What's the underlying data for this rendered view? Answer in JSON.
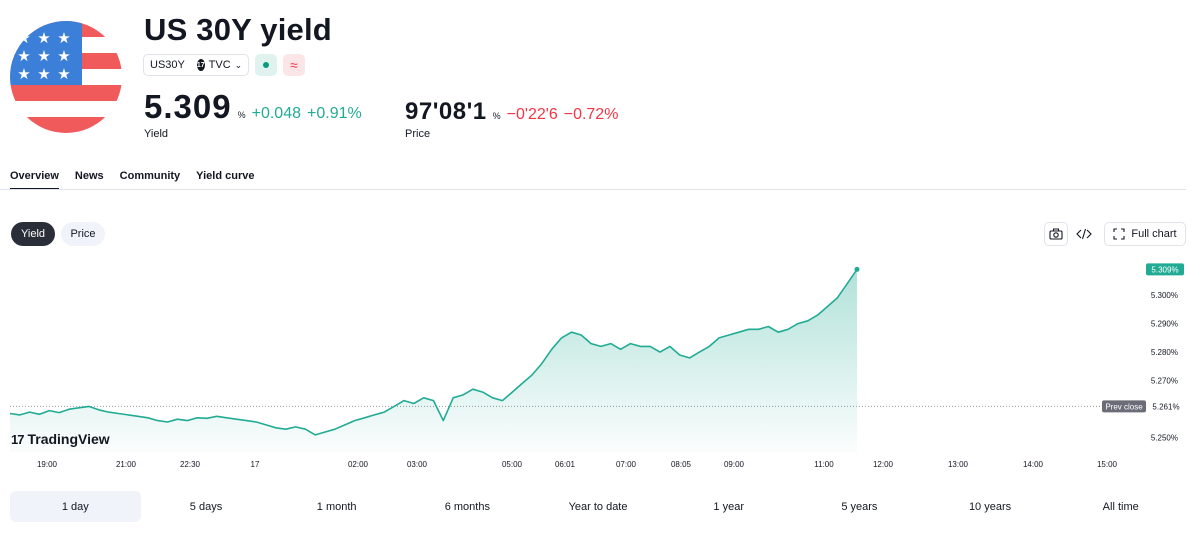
{
  "header": {
    "title": "US 30Y yield",
    "symbol": "US30Y",
    "exchange": "TVC",
    "flag_icon": "us-flag-icon",
    "market_open_icon": "dot-icon",
    "approx_icon": "≈"
  },
  "yield_quote": {
    "value": "5.309",
    "unit": "%",
    "change": "+0.048",
    "change_pct": "+0.91%",
    "label": "Yield"
  },
  "price_quote": {
    "value": "97'08'1",
    "unit": "%",
    "change": "−0'22'6",
    "change_pct": "−0.72%",
    "label": "Price"
  },
  "tabs": [
    "Overview",
    "News",
    "Community",
    "Yield curve"
  ],
  "toggles": {
    "yield_label": "Yield",
    "price_label": "Price"
  },
  "toolbar": {
    "snapshot_icon": "camera-icon",
    "embed_icon": "code-icon",
    "fullchart_icon": "fullscreen-icon",
    "fullchart_label": "Full chart"
  },
  "watermark": "TradingView",
  "ranges": [
    "1 day",
    "5 days",
    "1 month",
    "6 months",
    "Year to date",
    "1 year",
    "5 years",
    "10 years",
    "All time"
  ],
  "active_range": "1 day",
  "colors": {
    "line": "#22ab94",
    "up": "#22ab94",
    "down": "#f23645",
    "text": "#131722",
    "grid_label": "#131722",
    "accent_dark": "#2a2e39"
  },
  "chart_data": {
    "type": "area",
    "y_unit": "%",
    "ylim": [
      5.245,
      5.313
    ],
    "y_ticks": [
      5.25,
      5.27,
      5.28,
      5.29,
      5.3
    ],
    "y_tick_labels": [
      "5.250%",
      "5.270%",
      "5.280%",
      "5.290%",
      "5.300%"
    ],
    "x_ticks": [
      "19:00",
      "21:00",
      "22:30",
      "17",
      "02:00",
      "03:00",
      "05:00",
      "06:01",
      "07:00",
      "08:05",
      "09:00",
      "11:00",
      "12:00",
      "13:00",
      "14:00",
      "15:00"
    ],
    "last_value": 5.309,
    "last_value_label": "5.309%",
    "prev_close": 5.261,
    "prev_close_label": "Prev close",
    "prev_close_value_label": "5.261%",
    "series": [
      {
        "values": [
          5.2585,
          5.258,
          5.259,
          5.2582,
          5.2595,
          5.2588,
          5.26,
          5.2605,
          5.261,
          5.2598,
          5.259,
          5.2585,
          5.258,
          5.2575,
          5.257,
          5.256,
          5.2555,
          5.2565,
          5.256,
          5.257,
          5.2568,
          5.2575,
          5.257,
          5.2565,
          5.256,
          5.2555,
          5.2545,
          5.2535,
          5.253,
          5.2538,
          5.253,
          5.251,
          5.252,
          5.253,
          5.2545,
          5.256,
          5.257,
          5.258,
          5.259,
          5.261,
          5.263,
          5.262,
          5.264,
          5.263,
          5.256,
          5.264,
          5.265,
          5.267,
          5.266,
          5.264,
          5.263,
          5.266,
          5.269,
          5.272,
          5.276,
          5.281,
          5.285,
          5.287,
          5.286,
          5.283,
          5.282,
          5.283,
          5.281,
          5.283,
          5.282,
          5.282,
          5.28,
          5.282,
          5.279,
          5.278,
          5.28,
          5.282,
          5.285,
          5.286,
          5.287,
          5.288,
          5.288,
          5.289,
          5.287,
          5.288,
          5.29,
          5.291,
          5.293,
          5.296,
          5.299,
          5.304,
          5.309
        ]
      }
    ]
  }
}
